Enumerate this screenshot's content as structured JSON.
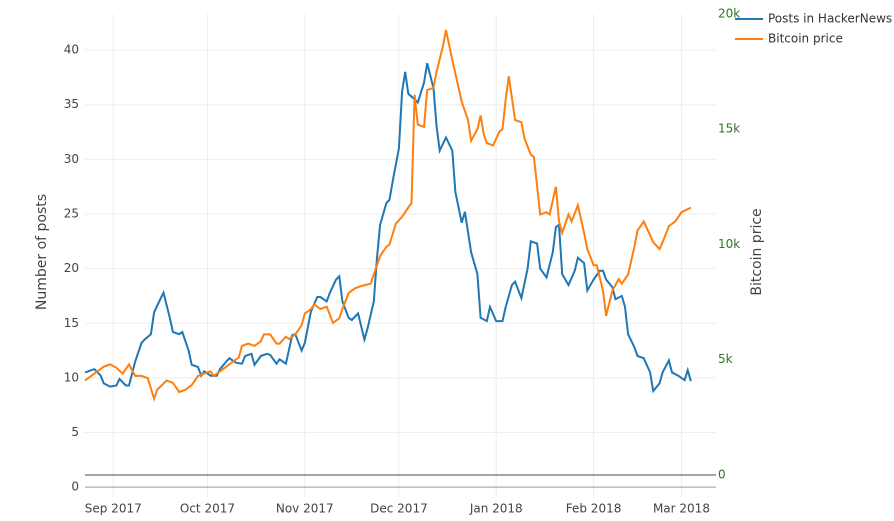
{
  "chart_data": {
    "type": "line",
    "xlim": [
      -9,
      192
    ],
    "xticks": [
      {
        "value": 0,
        "label": "Sep 2017"
      },
      {
        "value": 30,
        "label": "Oct 2017"
      },
      {
        "value": 61,
        "label": "Nov 2017"
      },
      {
        "value": 91,
        "label": "Dec 2017"
      },
      {
        "value": 122,
        "label": "Jan 2018"
      },
      {
        "value": 153,
        "label": "Feb 2018"
      },
      {
        "value": 181,
        "label": "Mar 2018"
      }
    ],
    "ylabel": "Number of posts",
    "ylim": [
      -0.9,
      43.3
    ],
    "yticks": [
      0,
      5,
      10,
      15,
      20,
      25,
      30,
      35,
      40
    ],
    "y2label": "Bitcoin price",
    "y2lim": [
      -955,
      20000
    ],
    "y2ticks": [
      0,
      {
        "value": 5000,
        "label": "5k"
      },
      {
        "value": 10000,
        "label": "10k"
      },
      {
        "value": 15000,
        "label": "15k"
      },
      {
        "value": 20000,
        "label": "20k"
      }
    ],
    "grid": true,
    "legend": "top-right",
    "series": [
      {
        "name": "Posts in HackerNews",
        "color": "#1f77b4",
        "x": [
          -9,
          -6,
          -4,
          -3,
          -1,
          1,
          2,
          4,
          5,
          7,
          9,
          10,
          12,
          13,
          15,
          16,
          18,
          19,
          21,
          22,
          24,
          25,
          27,
          28,
          29,
          31,
          33,
          34,
          36,
          37,
          39,
          41,
          42,
          44,
          45,
          47,
          49,
          50,
          52,
          53,
          55,
          57,
          58,
          60,
          61,
          63,
          65,
          66,
          68,
          69,
          71,
          72,
          73,
          75,
          76,
          78,
          80,
          81,
          83,
          84,
          85,
          87,
          88,
          89,
          91,
          92,
          93,
          94,
          96,
          97,
          99,
          100,
          102,
          103,
          104,
          106,
          108,
          109,
          111,
          112,
          114,
          116,
          117,
          119,
          120,
          122,
          124,
          125,
          127,
          128,
          130,
          132,
          133,
          135,
          136,
          138,
          140,
          141,
          142,
          143,
          145,
          147,
          148,
          150,
          151,
          153,
          155,
          156,
          157,
          159,
          160,
          162,
          163,
          164,
          166,
          167,
          169,
          171,
          172,
          174,
          175,
          177,
          178,
          180,
          182,
          183,
          184
        ],
        "values": [
          10.5,
          10.8,
          10.2,
          9.5,
          9.2,
          9.3,
          9.9,
          9.3,
          9.3,
          11.5,
          13.2,
          13.5,
          14,
          16,
          17.2,
          17.8,
          15.5,
          14.2,
          14,
          14.2,
          12.5,
          11.2,
          11,
          10.2,
          10.6,
          10.2,
          10.2,
          10.8,
          11.5,
          11.8,
          11.4,
          11.3,
          12,
          12.2,
          11.2,
          12,
          12.2,
          12.1,
          11.3,
          11.7,
          11.3,
          13.9,
          14,
          12.5,
          13.2,
          16.1,
          17.4,
          17.4,
          17,
          17.8,
          19,
          19.3,
          17,
          15.5,
          15.3,
          15.9,
          13.5,
          14.5,
          17,
          21,
          24,
          26,
          26.3,
          28,
          31,
          36.2,
          38,
          36,
          35.5,
          35.2,
          37,
          38.8,
          36.5,
          33,
          30.8,
          32,
          30.8,
          27,
          24.2,
          25.2,
          21.5,
          19.5,
          15.5,
          15.2,
          16.5,
          15.2,
          15.2,
          16.5,
          18.5,
          18.8,
          17.3,
          20,
          22.5,
          22.3,
          20,
          19.2,
          21.5,
          23.8,
          24,
          19.5,
          18.5,
          19.8,
          21,
          20.5,
          18,
          19,
          19.8,
          19.8,
          19,
          18.3,
          17.2,
          17.5,
          16.5,
          14,
          12.8,
          12,
          11.8,
          10.5,
          8.8,
          9.5,
          10.5,
          11.6,
          10.5,
          10.2,
          9.8,
          10.7,
          9.7
        ]
      },
      {
        "name": "Bitcoin price",
        "color": "#ff7f0e",
        "axis": "y2",
        "x": [
          -9,
          -6,
          -3,
          -1,
          1,
          3,
          5,
          7,
          9,
          11,
          13,
          14,
          17,
          19,
          21,
          23,
          25,
          27,
          29,
          31,
          32,
          34,
          36,
          38,
          40,
          41,
          43,
          45,
          47,
          48,
          50,
          52,
          53,
          55,
          56,
          58,
          60,
          61,
          63,
          64,
          66,
          68,
          70,
          72,
          73,
          75,
          77,
          79,
          82,
          83,
          85,
          87,
          88,
          90,
          92,
          94,
          95,
          96,
          97,
          99,
          100,
          102,
          103,
          105,
          106,
          108,
          110,
          111,
          113,
          114,
          116,
          117,
          118,
          119,
          121,
          123,
          124,
          125,
          126,
          128,
          130,
          131,
          133,
          134,
          136,
          138,
          139,
          141,
          142,
          143,
          145,
          146,
          148,
          150,
          151,
          153,
          154,
          156,
          157,
          159,
          161,
          162,
          164,
          166,
          167,
          169,
          171,
          172,
          174,
          175,
          177,
          179,
          181,
          184
        ],
        "values": [
          4100,
          4400,
          4700,
          4800,
          4650,
          4400,
          4800,
          4300,
          4300,
          4200,
          3300,
          3700,
          4100,
          4000,
          3600,
          3700,
          3900,
          4300,
          4400,
          4500,
          4300,
          4500,
          4700,
          4900,
          5100,
          5600,
          5700,
          5600,
          5800,
          6100,
          6100,
          5700,
          5700,
          6000,
          5900,
          6100,
          6500,
          7000,
          7200,
          7400,
          7200,
          7300,
          6600,
          6800,
          7200,
          7900,
          8100,
          8200,
          8300,
          8700,
          9500,
          9900,
          10000,
          10900,
          11200,
          11600,
          11800,
          16500,
          15200,
          15100,
          16700,
          16800,
          17500,
          18600,
          19300,
          18000,
          16800,
          16200,
          15400,
          14500,
          15000,
          15600,
          14800,
          14400,
          14300,
          14900,
          15000,
          16300,
          17300,
          15400,
          15300,
          14600,
          13900,
          13800,
          11300,
          11400,
          11300,
          12500,
          11000,
          10500,
          11300,
          11000,
          11700,
          10500,
          9800,
          9100,
          9100,
          8000,
          6900,
          8000,
          8500,
          8300,
          8700,
          9900,
          10600,
          11000,
          10400,
          10100,
          9800,
          10100,
          10800,
          11000,
          11400,
          11600
        ]
      }
    ]
  }
}
